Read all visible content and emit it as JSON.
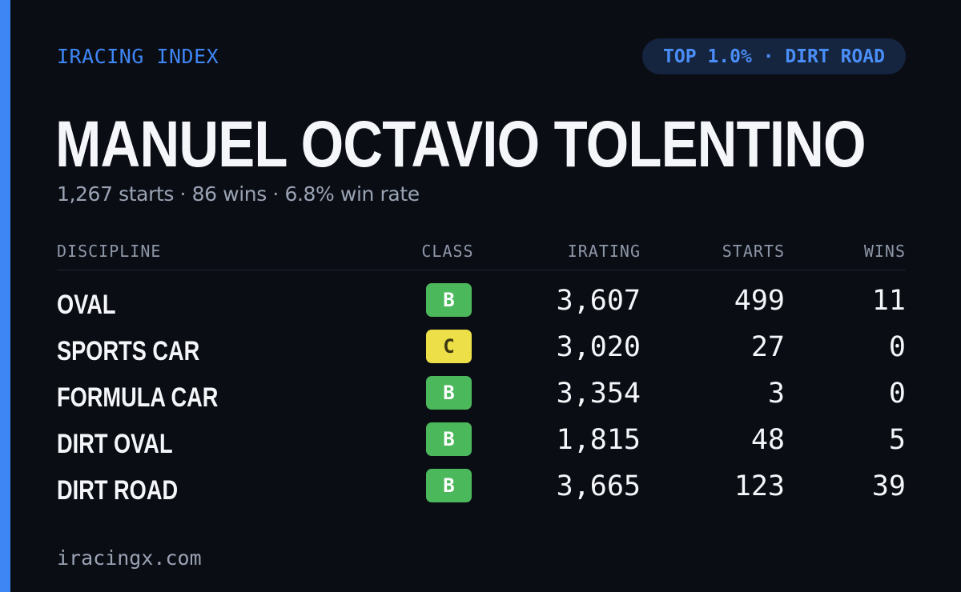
{
  "brand": "IRACING INDEX",
  "badge": "TOP 1.0% · DIRT ROAD",
  "driver_name": "MANUEL OCTAVIO TOLENTINO",
  "summary": "1,267 starts · 86 wins · 6.8% win rate",
  "table": {
    "headers": {
      "discipline": "DISCIPLINE",
      "class": "CLASS",
      "irating": "IRATING",
      "starts": "STARTS",
      "wins": "WINS"
    },
    "rows": [
      {
        "discipline": "OVAL",
        "class": "B",
        "irating": "3,607",
        "starts": "499",
        "wins": "11"
      },
      {
        "discipline": "SPORTS CAR",
        "class": "C",
        "irating": "3,020",
        "starts": "27",
        "wins": "0"
      },
      {
        "discipline": "FORMULA CAR",
        "class": "B",
        "irating": "3,354",
        "starts": "3",
        "wins": "0"
      },
      {
        "discipline": "DIRT OVAL",
        "class": "B",
        "irating": "1,815",
        "starts": "48",
        "wins": "5"
      },
      {
        "discipline": "DIRT ROAD",
        "class": "B",
        "irating": "3,665",
        "starts": "123",
        "wins": "39"
      }
    ]
  },
  "footer": "iracingx.com",
  "colors": {
    "accent": "#3f86f5",
    "background": "#0a0d14",
    "class_b": "#4cb85c",
    "class_c": "#ecdf48"
  }
}
